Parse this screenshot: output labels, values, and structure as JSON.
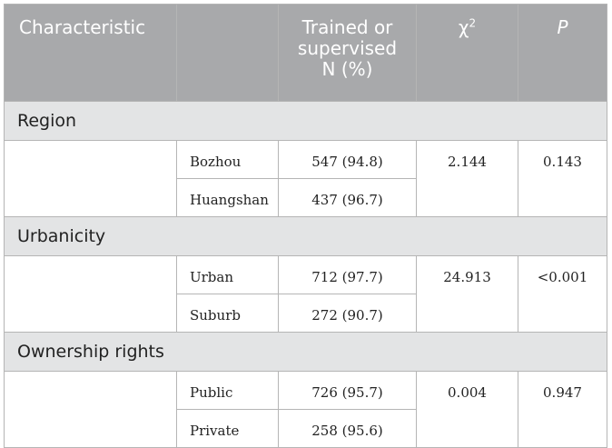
{
  "table": {
    "headers": {
      "characteristic": "Characteristic",
      "trained_line1": "Trained or",
      "trained_line2": "supervised",
      "trained_line3": "N (%)",
      "chi_base": "χ",
      "chi_exp": "2",
      "p": "P"
    },
    "sections": [
      {
        "title": "Region",
        "rows": [
          {
            "label": "Bozhou",
            "n": "547 (94.8)",
            "chi2": "2.144",
            "p": "0.143"
          },
          {
            "label": "Huangshan",
            "n": "437 (96.7)"
          }
        ]
      },
      {
        "title": "Urbanicity",
        "rows": [
          {
            "label": "Urban",
            "n": "712 (97.7)",
            "chi2": "24.913",
            "p": "<0.001"
          },
          {
            "label": "Suburb",
            "n": "272 (90.7)"
          }
        ]
      },
      {
        "title": "Ownership rights",
        "rows": [
          {
            "label": "Public",
            "n": "726 (95.7)",
            "chi2": "0.004",
            "p": "0.947"
          },
          {
            "label": "Private",
            "n": "258 (95.6)"
          }
        ]
      }
    ]
  }
}
